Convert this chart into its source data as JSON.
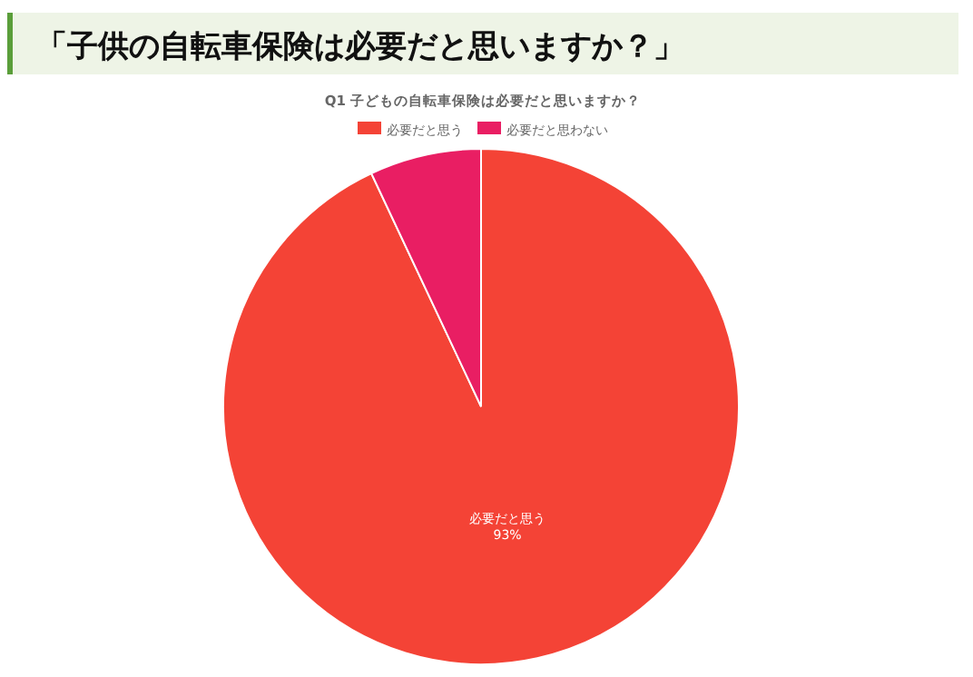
{
  "chart_data": {
    "type": "pie",
    "title": "「子供の自転車保険は必要だと思いますか？」",
    "subtitle": "Q1 子どもの自転車保険は必要だと思いますか？",
    "categories": [
      "必要だと思う",
      "必要だと思わない"
    ],
    "values": [
      93,
      7
    ],
    "colors": [
      "#f44336",
      "#e91e63"
    ],
    "value_labels": [
      "93%",
      null
    ],
    "legend": "top"
  }
}
